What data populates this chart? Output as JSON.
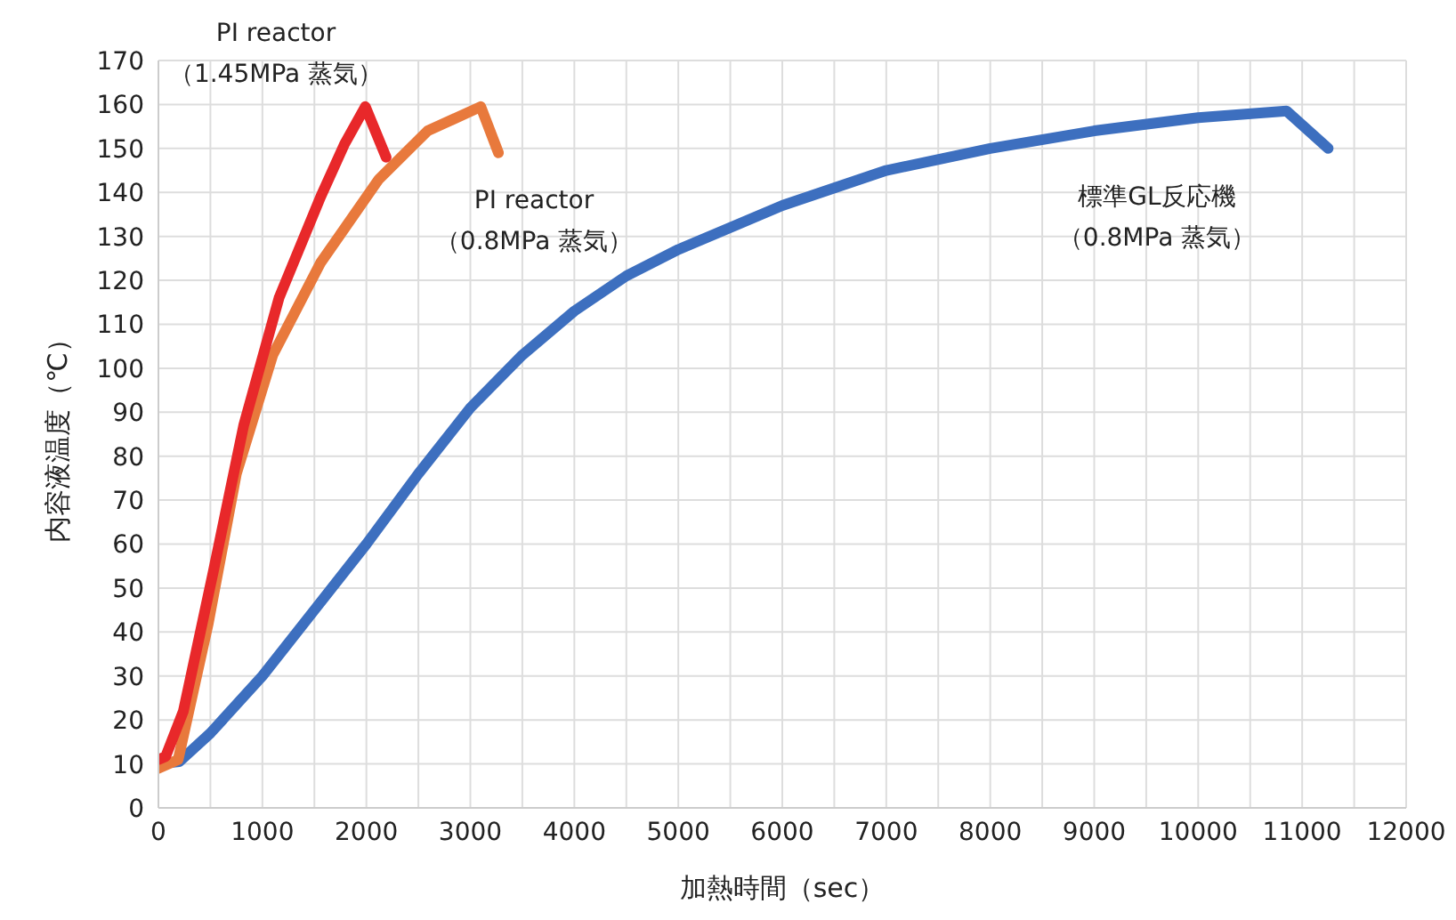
{
  "chart_data": {
    "type": "line",
    "xlabel": "加熱時間（sec）",
    "ylabel": "内容液温度（℃）",
    "xlim": [
      0,
      12000
    ],
    "ylim": [
      0,
      170
    ],
    "xticks": [
      0,
      {
        "value": 500,
        "label": null
      },
      1000,
      {
        "value": 1500,
        "label": null
      },
      2000,
      {
        "value": 2500,
        "label": null
      },
      3000,
      {
        "value": 3500,
        "label": null
      },
      4000,
      {
        "value": 4500,
        "label": null
      },
      5000,
      {
        "value": 5500,
        "label": null
      },
      6000,
      {
        "value": 6500,
        "label": null
      },
      7000,
      {
        "value": 7500,
        "label": null
      },
      8000,
      {
        "value": 8500,
        "label": null
      },
      9000,
      {
        "value": 9500,
        "label": null
      },
      10000,
      {
        "value": 10500,
        "label": null
      },
      11000,
      {
        "value": 11500,
        "label": null
      },
      12000
    ],
    "yticks": [
      0,
      10,
      20,
      30,
      40,
      50,
      60,
      70,
      80,
      90,
      100,
      110,
      120,
      130,
      140,
      150,
      160,
      170
    ],
    "grid": true,
    "marker": "none",
    "line_style": "solid",
    "series": [
      {
        "color": "#3d6fbf",
        "x": [
          0,
          200,
          500,
          1000,
          1500,
          2000,
          2500,
          3000,
          3500,
          4000,
          4500,
          5000,
          6000,
          7000,
          8000,
          9000,
          10000,
          10850,
          11250
        ],
        "values": [
          10,
          10.5,
          17,
          30,
          45,
          60,
          76,
          91,
          103,
          113,
          121,
          127,
          137,
          145,
          150,
          154,
          157,
          158.5,
          150
        ]
      },
      {
        "color": "#e8793c",
        "x": [
          0,
          190,
          480,
          750,
          1100,
          1560,
          2120,
          2590,
          3100,
          3270
        ],
        "values": [
          9,
          11,
          42,
          76,
          103,
          124,
          143,
          154,
          159.5,
          149
        ]
      },
      {
        "color": "#e8282a",
        "x": [
          0,
          70,
          240,
          530,
          820,
          1160,
          1560,
          1790,
          1990,
          2190
        ],
        "values": [
          11,
          11.7,
          22,
          54,
          87,
          116,
          139,
          151,
          159.5,
          148
        ]
      }
    ],
    "annotations": [
      "標準GL反応機（0.8MPa 蒸気）",
      "PI reactor（0.8MPa 蒸気）",
      "PI reactor（1.45MPa 蒸気）"
    ]
  }
}
